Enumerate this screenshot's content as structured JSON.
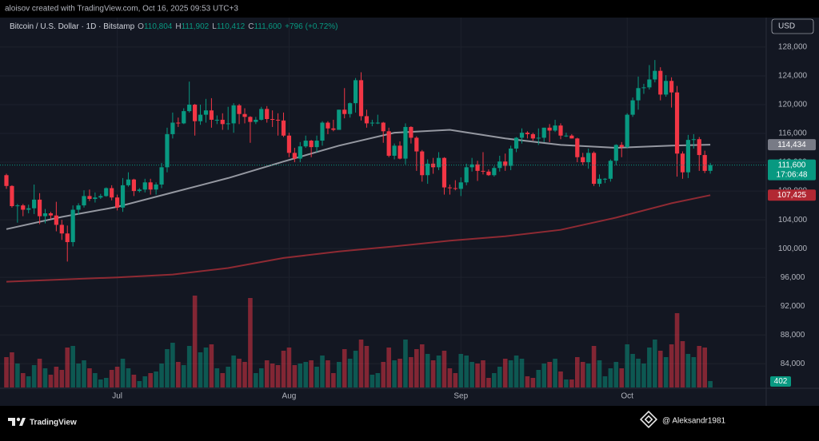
{
  "header": {
    "credit": "aloisov created with TradingView.com, Oct 16, 2025 09:53 UTC+3"
  },
  "chart_data": {
    "type": "candlestick",
    "legend": {
      "symbol": "Bitcoin / U.S. Dollar · 1D · Bitstamp",
      "fields": [
        {
          "key": "O",
          "value": 110804,
          "label": "110,804"
        },
        {
          "key": "H",
          "value": 111902,
          "label": "111,902"
        },
        {
          "key": "L",
          "value": 110412,
          "label": "110,412"
        },
        {
          "key": "C",
          "value": 111600,
          "label": "111,600"
        }
      ],
      "change": {
        "value": 796,
        "label": "+796"
      },
      "change_pct": {
        "value": 0.72,
        "label": "(+0.72%)"
      }
    },
    "currency": "USD",
    "up_color": "#089981",
    "down_color": "#f23645",
    "open": [
      110200,
      108700,
      105900,
      106000,
      105400,
      105600,
      106800,
      104500,
      104900,
      104600,
      103300,
      102100,
      100900,
      105400,
      106000,
      107300,
      106900,
      107100,
      107300,
      108400,
      107100,
      105700,
      108800,
      109600,
      108000,
      108200,
      109200,
      108200,
      108900,
      111300,
      115900,
      117500,
      117400,
      119100,
      120000,
      117700,
      118600,
      119200,
      117900,
      117900,
      117300,
      117400,
      119900,
      118700,
      118300,
      117600,
      117900,
      119400,
      118000,
      117900,
      117800,
      115700,
      113300,
      112500,
      114200,
      115000,
      114100,
      115000,
      117500,
      116700,
      116500,
      119300,
      118700,
      120200,
      123400,
      118400,
      117400,
      117500,
      117500,
      116300,
      112900,
      114300,
      112500,
      116900,
      115400,
      113500,
      110200,
      111800,
      111300,
      112600,
      108500,
      108400,
      108300,
      109200,
      111300,
      111700,
      110800,
      110700,
      110200,
      111200,
      112100,
      111500,
      113900,
      115400,
      116100,
      115900,
      115300,
      115400,
      116800,
      116400,
      117100,
      115700,
      115700,
      115300,
      112700,
      112000,
      113300,
      109000,
      109700,
      109700,
      112200,
      114400,
      114100,
      118600,
      120600,
      122300,
      122400,
      123500,
      124700,
      121400,
      123300,
      121700,
      113200,
      110600,
      115100,
      115200,
      113000,
      110804
    ],
    "high": [
      110400,
      108800,
      106200,
      106200,
      106100,
      108900,
      107700,
      105500,
      105100,
      106500,
      104000,
      103200,
      106000,
      106300,
      108100,
      108200,
      107800,
      107600,
      108500,
      108800,
      107500,
      109800,
      110600,
      109700,
      108400,
      109700,
      109700,
      109200,
      111900,
      116800,
      118900,
      118200,
      119500,
      123200,
      120100,
      120000,
      120800,
      120900,
      118500,
      118800,
      119700,
      120200,
      120100,
      119500,
      118400,
      118300,
      119700,
      119800,
      119200,
      118800,
      118900,
      116100,
      114000,
      114800,
      115700,
      115100,
      115700,
      117700,
      117700,
      117900,
      119300,
      122300,
      120300,
      123700,
      124500,
      119300,
      117900,
      118600,
      117600,
      116800,
      114600,
      114900,
      117400,
      117000,
      115600,
      113700,
      112400,
      112600,
      113400,
      112700,
      108900,
      109500,
      109900,
      111800,
      112600,
      112200,
      113400,
      111000,
      111500,
      112900,
      113200,
      114300,
      115500,
      116700,
      116300,
      116100,
      116700,
      116800,
      117300,
      117900,
      117400,
      116100,
      115900,
      115400,
      113300,
      113900,
      113500,
      110300,
      109800,
      112400,
      114500,
      114800,
      118800,
      121000,
      123900,
      122900,
      125500,
      126200,
      125200,
      124100,
      123800,
      122600,
      113500,
      115800,
      115900,
      115500,
      113600,
      111902
    ],
    "low": [
      108300,
      105700,
      103600,
      104500,
      104900,
      104800,
      103400,
      103500,
      104100,
      102400,
      101200,
      98200,
      100300,
      104700,
      105700,
      106600,
      106400,
      106900,
      107200,
      106700,
      105300,
      105100,
      108600,
      107300,
      107800,
      107800,
      107500,
      107500,
      108400,
      110600,
      115300,
      116900,
      117300,
      118900,
      115700,
      117200,
      117500,
      116800,
      117300,
      116500,
      116500,
      116100,
      117300,
      117400,
      114700,
      117300,
      117800,
      117500,
      116900,
      115700,
      115500,
      112700,
      112000,
      112000,
      114000,
      112700,
      113400,
      114300,
      115900,
      116300,
      116500,
      118100,
      118200,
      118900,
      117800,
      116800,
      117000,
      117300,
      114700,
      112700,
      112400,
      112400,
      111700,
      114600,
      110800,
      109300,
      109000,
      110400,
      110900,
      107500,
      107500,
      108100,
      107300,
      108800,
      110700,
      109400,
      110300,
      110100,
      110000,
      110700,
      110800,
      110900,
      113400,
      114600,
      115300,
      115000,
      114400,
      114800,
      114800,
      116200,
      115200,
      115500,
      115300,
      112000,
      111600,
      111100,
      108700,
      108600,
      109100,
      109300,
      111600,
      112700,
      113900,
      118300,
      119300,
      121500,
      122100,
      123100,
      120600,
      121100,
      119600,
      110000,
      109700,
      109800,
      113900,
      110800,
      110500,
      110412
    ],
    "close": [
      108700,
      105900,
      106000,
      105400,
      105600,
      106800,
      104500,
      104900,
      104600,
      103300,
      102100,
      100900,
      105400,
      106000,
      107300,
      106900,
      107100,
      107300,
      108400,
      107100,
      105700,
      108800,
      109600,
      108000,
      108200,
      109200,
      108200,
      108900,
      111300,
      115900,
      117500,
      117400,
      119100,
      120000,
      117700,
      118600,
      119200,
      117900,
      117900,
      117300,
      117400,
      119900,
      118700,
      118300,
      117600,
      117900,
      119400,
      118000,
      117900,
      117800,
      115700,
      113300,
      112500,
      114200,
      115000,
      114100,
      115000,
      117500,
      116700,
      116500,
      119300,
      118700,
      120200,
      123400,
      118400,
      117400,
      117500,
      117500,
      116300,
      112900,
      114300,
      112500,
      116900,
      115400,
      113500,
      110200,
      111800,
      111300,
      112600,
      108500,
      108400,
      108300,
      109200,
      111300,
      111700,
      110800,
      110700,
      110200,
      111200,
      112100,
      111500,
      113900,
      115400,
      116100,
      115900,
      115300,
      115400,
      116800,
      116400,
      117100,
      115700,
      115700,
      115300,
      112700,
      112000,
      113300,
      109000,
      109700,
      109700,
      112200,
      114400,
      114100,
      118600,
      120600,
      122300,
      122400,
      123500,
      124700,
      121400,
      123300,
      121700,
      113200,
      110600,
      115100,
      115200,
      113000,
      110800,
      111600
    ],
    "volume": [
      1900,
      2200,
      1500,
      900,
      700,
      1400,
      1800,
      1200,
      800,
      1300,
      1100,
      2500,
      2600,
      1500,
      1700,
      1200,
      900,
      500,
      600,
      1100,
      1300,
      1800,
      1200,
      800,
      400,
      700,
      900,
      1000,
      1500,
      2400,
      2800,
      1600,
      1400,
      2600,
      5750,
      2200,
      2500,
      2700,
      1200,
      900,
      1300,
      2000,
      1800,
      1600,
      5600,
      900,
      1200,
      1700,
      1500,
      1400,
      2300,
      2500,
      1400,
      1500,
      1600,
      1700,
      1300,
      2000,
      1700,
      900,
      1600,
      2400,
      1800,
      2300,
      3000,
      2600,
      800,
      900,
      1600,
      2500,
      1700,
      1800,
      3000,
      1900,
      2400,
      2700,
      2100,
      1700,
      2000,
      2300,
      1200,
      900,
      2100,
      2000,
      1600,
      1500,
      1700,
      600,
      900,
      1300,
      1800,
      1700,
      2000,
      1800,
      700,
      600,
      1100,
      1500,
      1600,
      1800,
      1000,
      500,
      500,
      1900,
      1600,
      1500,
      2600,
      1700,
      700,
      1200,
      1600,
      1200,
      2700,
      2100,
      1800,
      1500,
      2500,
      3000,
      2300,
      1900,
      2700,
      4650,
      2900,
      2100,
      1900,
      2600,
      2500,
      402
    ],
    "ma": [
      {
        "color": "#9598a1",
        "x": [
          0,
          10,
          20,
          30,
          40,
          50,
          60,
          70,
          80,
          90,
          100,
          110,
          120,
          127
        ],
        "values": [
          102700,
          104400,
          105800,
          107800,
          109800,
          112100,
          114300,
          116100,
          116500,
          115300,
          114400,
          114000,
          114300,
          114434
        ],
        "last_label": "114,434"
      },
      {
        "color": "#8f2a33",
        "x": [
          0,
          20,
          30,
          40,
          50,
          60,
          70,
          80,
          90,
          100,
          110,
          120,
          127
        ],
        "values": [
          95400,
          96000,
          96400,
          97300,
          98700,
          99600,
          100300,
          101100,
          101700,
          102600,
          104300,
          106300,
          107425
        ],
        "last_label": "107,425"
      }
    ],
    "last_price": {
      "value": 111600,
      "label": "111,600",
      "countdown": "17:06:48"
    },
    "ylim": [
      80700,
      132100
    ],
    "yticks": [
      {
        "value": 84000,
        "label": "84,000"
      },
      {
        "value": 88000,
        "label": "88,000"
      },
      {
        "value": 92000,
        "label": "92,000"
      },
      {
        "value": 96000,
        "label": "96,000"
      },
      {
        "value": 100000,
        "label": "100,000"
      },
      {
        "value": 104000,
        "label": "104,000"
      },
      {
        "value": 108000,
        "label": "108,000"
      },
      {
        "value": 112000,
        "label": "112,000"
      },
      {
        "value": 116000,
        "label": "116,000"
      },
      {
        "value": 120000,
        "label": "120,000"
      },
      {
        "value": 124000,
        "label": "124,000"
      },
      {
        "value": 128000,
        "label": "128,000"
      }
    ],
    "xticks": [
      {
        "value": 20,
        "label": "Jul"
      },
      {
        "value": 51,
        "label": "Aug"
      },
      {
        "value": 82,
        "label": "Sep"
      },
      {
        "value": 112,
        "label": "Oct"
      }
    ],
    "grid": true
  },
  "footer": {
    "brand": "TradingView",
    "handle": "@ Aleksandr1981"
  }
}
